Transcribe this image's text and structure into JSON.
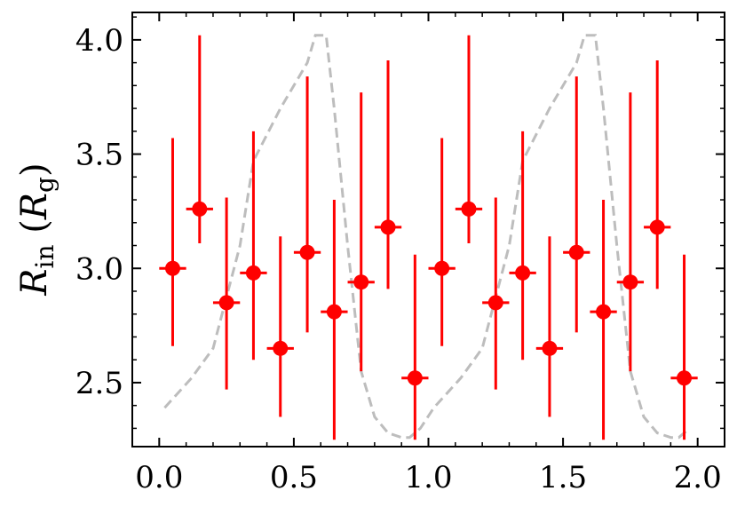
{
  "chart_data": {
    "type": "scatter",
    "title": "",
    "xlabel": "",
    "ylabel_main": "R",
    "ylabel_sub1": "in",
    "ylabel_open": " (",
    "ylabel_main2": "R",
    "ylabel_sub2": "g",
    "ylabel_close": ")",
    "xlim": [
      -0.1,
      2.1
    ],
    "ylim": [
      2.22,
      4.12
    ],
    "xticks": [
      0.0,
      0.5,
      1.0,
      1.5,
      2.0
    ],
    "xtick_labels": [
      "0.0",
      "0.5",
      "1.0",
      "1.5",
      "2.0"
    ],
    "yticks": [
      2.5,
      3.0,
      3.5,
      4.0
    ],
    "ytick_labels": [
      "2.5",
      "3.0",
      "3.5",
      "4.0"
    ],
    "grid": false,
    "series": [
      {
        "kind": "errorbar",
        "color": "#ff0000",
        "x": [
          0.05,
          0.15,
          0.25,
          0.35,
          0.45,
          0.55,
          0.65,
          0.75,
          0.85,
          0.95,
          1.05,
          1.15,
          1.25,
          1.35,
          1.45,
          1.55,
          1.65,
          1.75,
          1.85,
          1.95
        ],
        "x_half_width": 0.05,
        "y": [
          3.0,
          3.26,
          2.85,
          2.98,
          2.65,
          3.07,
          2.81,
          2.94,
          3.18,
          2.52,
          3.0,
          3.26,
          2.85,
          2.98,
          2.65,
          3.07,
          2.81,
          2.94,
          3.18,
          2.52
        ],
        "y_low": [
          2.66,
          3.11,
          2.47,
          2.6,
          2.35,
          2.72,
          2.25,
          2.55,
          2.91,
          2.25,
          2.66,
          3.11,
          2.47,
          2.6,
          2.35,
          2.72,
          2.25,
          2.55,
          2.91,
          2.25
        ],
        "y_high": [
          3.57,
          4.02,
          3.31,
          3.6,
          3.14,
          3.84,
          3.3,
          3.77,
          3.91,
          3.06,
          3.57,
          4.02,
          3.31,
          3.6,
          3.14,
          3.84,
          3.3,
          3.77,
          3.91,
          3.06
        ]
      },
      {
        "kind": "line",
        "style": "dashed",
        "color": "#bdbdbd",
        "x": [
          0.02,
          0.12,
          0.2,
          0.3,
          0.35,
          0.45,
          0.55,
          0.58,
          0.62,
          0.65,
          0.7,
          0.75,
          0.8,
          0.85,
          0.9,
          0.93,
          0.97,
          1.02,
          1.12,
          1.2,
          1.3,
          1.35,
          1.45,
          1.55,
          1.58,
          1.62,
          1.65,
          1.7,
          1.75,
          1.8,
          1.85,
          1.9,
          1.93,
          1.97
        ],
        "y": [
          2.39,
          2.52,
          2.65,
          3.1,
          3.47,
          3.7,
          3.9,
          4.02,
          4.02,
          3.7,
          3.1,
          2.55,
          2.35,
          2.28,
          2.26,
          2.26,
          2.3,
          2.39,
          2.52,
          2.65,
          3.1,
          3.47,
          3.7,
          3.9,
          4.02,
          4.02,
          3.7,
          3.1,
          2.55,
          2.35,
          2.28,
          2.26,
          2.26,
          2.3
        ]
      }
    ]
  }
}
